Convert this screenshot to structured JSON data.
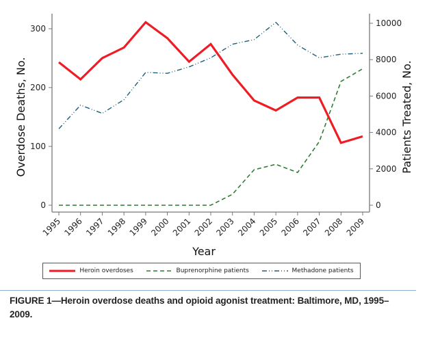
{
  "chart_data": {
    "type": "line",
    "title": "",
    "xlabel": "Year",
    "ylabel": "Overdose Deaths, No.",
    "y2label": "Patients Treated, No.",
    "x": [
      "1995",
      "1996",
      "1997",
      "1998",
      "1999",
      "2000",
      "2001",
      "2002",
      "2003",
      "2004",
      "2005",
      "2006",
      "2007",
      "2008",
      "2009"
    ],
    "ylim": [
      0,
      300
    ],
    "y_ticks": [
      "0",
      "100",
      "200",
      "300"
    ],
    "y2lim": [
      0,
      10000
    ],
    "y2_ticks": [
      "0",
      "2000",
      "4000",
      "6000",
      "8000",
      "10000"
    ],
    "grid": false,
    "legend_position": "bottom",
    "series": [
      {
        "name": "Heroin overdoses",
        "axis": "left",
        "color": "#ee1c24",
        "style": "solid",
        "values": [
          243,
          214,
          250,
          268,
          311,
          284,
          244,
          274,
          222,
          178,
          161,
          183,
          183,
          106,
          117
        ]
      },
      {
        "name": "Buprenorphine patients",
        "axis": "right",
        "color": "#2e7d32",
        "style": "dashed",
        "values": [
          0,
          0,
          0,
          0,
          0,
          0,
          0,
          0,
          600,
          1950,
          2250,
          1800,
          3500,
          6800,
          7500
        ]
      },
      {
        "name": "Methadone patients",
        "axis": "right",
        "color": "#1d5f7a",
        "style": "dash-dot",
        "values": [
          4200,
          5500,
          5050,
          5800,
          7300,
          7250,
          7600,
          8100,
          8850,
          9100,
          10050,
          8800,
          8100,
          8300,
          8350
        ]
      }
    ]
  },
  "caption": "FIGURE 1—Heroin overdose deaths and opioid agonist treatment: Baltimore, MD, 1995–2009."
}
